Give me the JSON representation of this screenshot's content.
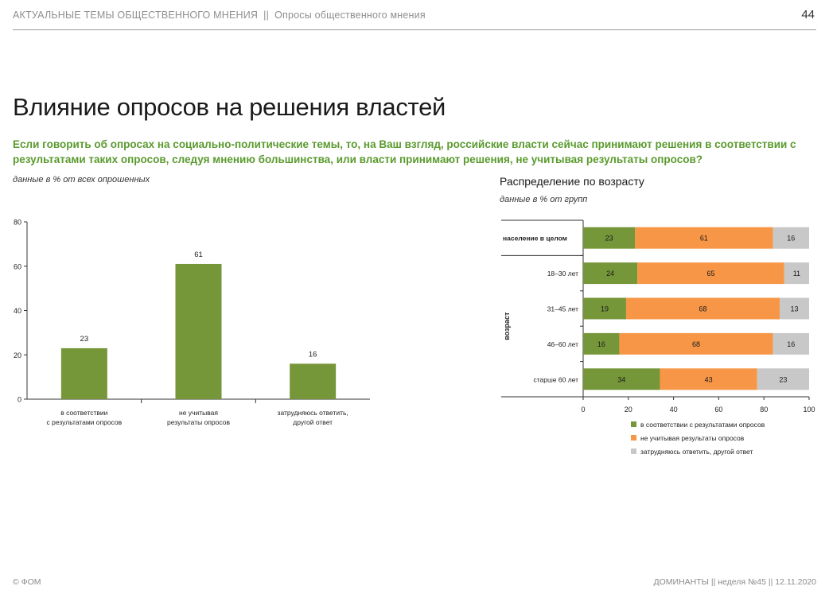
{
  "header": {
    "section": "АКТУАЛЬНЫЕ ТЕМЫ ОБЩЕСТВЕННОГО МНЕНИЯ",
    "separator": "||",
    "subsection": "Опросы общественного мнения",
    "page_number": "44"
  },
  "title": "Влияние опросов на решения властей",
  "question": "Если говорить об опросах на социально-политические темы, то, на Ваш взгляд, российские власти сейчас принимают решения в соответствии с результатами таких опросов, следуя мнению большинства, или власти принимают решения, не учитывая результаты опросов?",
  "left_note": "данные в % от всех опрошенных",
  "right_subtitle": "Распределение по возрасту",
  "right_note": "данные в % от групп",
  "footer": {
    "left": "© ФОМ",
    "right": "ДОМИНАНТЫ  ||  неделя №45 || 12.11.2020"
  },
  "colors": {
    "green": "#76963a",
    "orange": "#f79646",
    "gray": "#c8c8c8",
    "question_green": "#5a9a2e"
  },
  "chart_data": [
    {
      "type": "bar",
      "categories": [
        [
          "в соответствии",
          "с результатами опросов"
        ],
        [
          "не учитывая",
          "результаты опросов"
        ],
        [
          "затрудняюсь ответить,",
          "другой ответ"
        ]
      ],
      "values": [
        23,
        61,
        16
      ],
      "ylim": [
        0,
        80
      ],
      "yticks": [
        0,
        20,
        40,
        60,
        80
      ],
      "grid": false,
      "color": "#76963a"
    },
    {
      "type": "bar",
      "orientation": "horizontal",
      "stacked": true,
      "ylabel": "возраст",
      "categories": [
        "население в целом",
        "18–30 лет",
        "31–45 лет",
        "46–60 лет",
        "старше 60 лет"
      ],
      "series": [
        {
          "name": "в соответствии с результатами опросов",
          "values": [
            23,
            24,
            19,
            16,
            34
          ],
          "color": "#76963a"
        },
        {
          "name": "не учитывая результаты опросов",
          "values": [
            61,
            65,
            68,
            68,
            43
          ],
          "color": "#f79646"
        },
        {
          "name": "затрудняюсь ответить, другой ответ",
          "values": [
            16,
            11,
            13,
            16,
            23
          ],
          "color": "#c8c8c8"
        }
      ],
      "xlim": [
        0,
        100
      ],
      "xticks": [
        0,
        20,
        40,
        60,
        80,
        100
      ],
      "legend_position": "bottom"
    }
  ]
}
